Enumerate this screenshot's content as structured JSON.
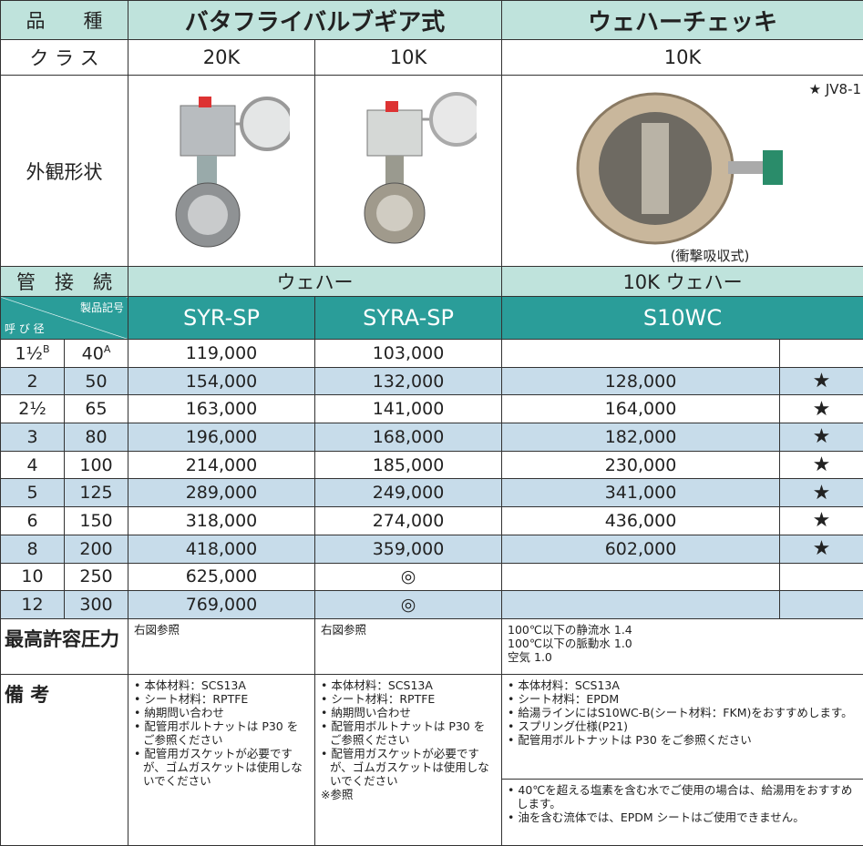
{
  "header": {
    "kind_label": "品　　種",
    "kinds": [
      "バタフライバルブギア式",
      "ウェハーチェッキ"
    ],
    "class_label": "ク ラ ス",
    "classes": [
      "20K",
      "10K",
      "10K"
    ],
    "appearance_label": "外観形状",
    "star_note": "★ JV8-1",
    "caption": "(衝撃吸収式)",
    "connection_label": "管　接　続",
    "connections": [
      "ウェハー",
      "10K ウェハー"
    ],
    "code_label": "製品記号",
    "size_label": "呼 び 径",
    "codes": [
      "SYR-SP",
      "SYRA-SP",
      "S10WC"
    ]
  },
  "table": {
    "inch_unit": "B",
    "mm_unit": "A",
    "rows": [
      {
        "inch": "1½",
        "mm": "40",
        "syr": "119,000",
        "syra": "103,000"
      },
      {
        "inch": "2",
        "mm": "50",
        "syr": "154,000",
        "syra": "132,000",
        "s10wc": "128,000",
        "mark": "★"
      },
      {
        "inch": "2½",
        "mm": "65",
        "syr": "163,000",
        "syra": "141,000",
        "s10wc": "164,000",
        "mark": "★"
      },
      {
        "inch": "3",
        "mm": "80",
        "syr": "196,000",
        "syra": "168,000",
        "s10wc": "182,000",
        "mark": "★"
      },
      {
        "inch": "4",
        "mm": "100",
        "syr": "214,000",
        "syra": "185,000",
        "s10wc": "230,000",
        "mark": "★"
      },
      {
        "inch": "5",
        "mm": "125",
        "syr": "289,000",
        "syra": "249,000",
        "s10wc": "341,000",
        "mark": "★"
      },
      {
        "inch": "6",
        "mm": "150",
        "syr": "318,000",
        "syra": "274,000",
        "s10wc": "436,000",
        "mark": "★"
      },
      {
        "inch": "8",
        "mm": "200",
        "syr": "418,000",
        "syra": "359,000",
        "s10wc": "602,000",
        "mark": "★"
      },
      {
        "inch": "10",
        "mm": "250",
        "syr": "625,000",
        "syra": "◎"
      },
      {
        "inch": "12",
        "mm": "300",
        "syr": "769,000",
        "syra": "◎"
      }
    ]
  },
  "footer": {
    "pressure_label": "最高許容圧力",
    "pressure": [
      "右図参照",
      "右図参照"
    ],
    "pressure_s10wc": [
      "100℃以下の静流水 1.4",
      "100℃以下の脈動水 1.0",
      "空気 1.0"
    ],
    "remarks_label": "備 考",
    "remarks_syr": [
      "• 本体材料：SCS13A",
      "• シート材料：RPTFE",
      "• 納期問い合わせ",
      "• 配管用ボルトナットは P30 をご参照ください",
      "• 配管用ガスケットが必要ですが、ゴムガスケットは使用しないでください"
    ],
    "remarks_syra": [
      "• 本体材料：SCS13A",
      "• シート材料：RPTFE",
      "• 納期問い合わせ",
      "• 配管用ボルトナットは P30 をご参照ください",
      "• 配管用ガスケットが必要ですが、ゴムガスケットは使用しないでください",
      "※参照"
    ],
    "remarks_s10wc": [
      "• 本体材料：SCS13A",
      "• シート材料：EPDM",
      "• 給湯ラインにはS10WC-B(シート材料：FKM)をおすすめします。",
      "• スプリング仕様(P21)",
      "• 配管用ボルトナットは P30 をご参照ください"
    ],
    "remarks_s10wc_2": [
      "• 40℃を超える塩素を含む水でご使用の場合は、給湯用をおすすめします。",
      "• 油を含む流体では、EPDM シートはご使用できません。"
    ]
  }
}
